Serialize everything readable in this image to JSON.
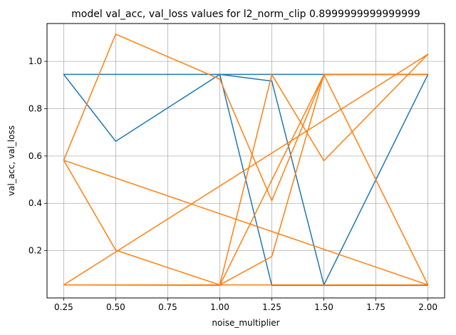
{
  "chart_data": {
    "type": "line",
    "title": "model val_acc, val_loss values for l2_norm_clip 0.8999999999999999",
    "xlabel": "noise_multiplier",
    "ylabel": "val_acc, val_loss",
    "xlim": [
      0.17,
      2.08
    ],
    "ylim": [
      0.0,
      1.16
    ],
    "xticks": [
      0.25,
      0.5,
      0.75,
      1.0,
      1.25,
      1.5,
      1.75,
      2.0
    ],
    "xtick_labels": [
      "0.25",
      "0.50",
      "0.75",
      "1.00",
      "1.25",
      "1.50",
      "1.75",
      "2.00"
    ],
    "yticks": [
      0.2,
      0.4,
      0.6,
      0.8,
      1.0
    ],
    "ytick_labels": [
      "0.2",
      "0.4",
      "0.6",
      "0.8",
      "1.0"
    ],
    "grid": true,
    "series": [
      {
        "color": "#1f77b4",
        "x": [
          0.25,
          0.5,
          1.0,
          1.25,
          1.5,
          2.0,
          0.25,
          1.0,
          1.25,
          2.0,
          0.25,
          1.0,
          1.5,
          2.0,
          1.0,
          1.25,
          2.0
        ],
        "y": [
          0.945,
          0.662,
          0.945,
          0.917,
          0.055,
          0.945,
          0.945,
          0.945,
          0.945,
          0.945,
          0.945,
          0.945,
          0.945,
          0.945,
          0.945,
          0.053,
          0.053
        ]
      },
      {
        "color": "#ff7f0e",
        "x": [
          0.25,
          0.5,
          1.0,
          1.25,
          1.5,
          2.0,
          0.25,
          1.0,
          1.25,
          1.5,
          2.0,
          0.25,
          0.5,
          1.0,
          1.25,
          1.5,
          2.0,
          0.25,
          1.0,
          1.5,
          2.0
        ],
        "y": [
          0.582,
          1.115,
          0.925,
          0.411,
          0.944,
          0.055,
          0.055,
          0.055,
          0.175,
          0.944,
          0.055,
          0.582,
          0.202,
          0.055,
          0.944,
          0.58,
          1.03,
          0.055,
          0.053,
          0.944,
          0.944
        ]
      }
    ]
  }
}
